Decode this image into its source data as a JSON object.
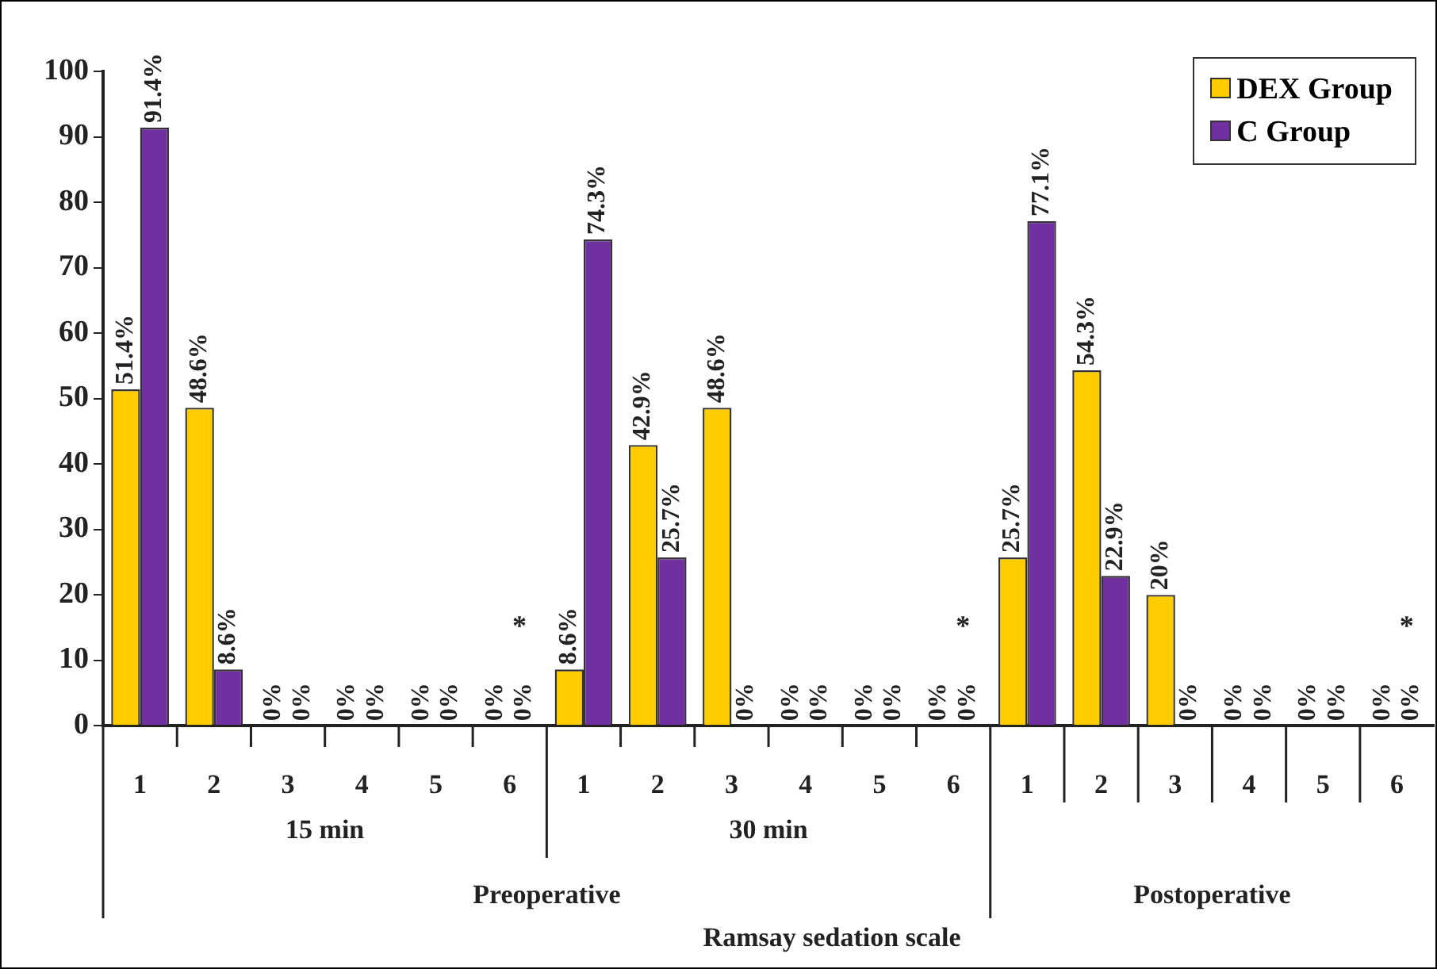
{
  "chart_data": {
    "type": "bar",
    "categories": [
      "1",
      "2",
      "3",
      "4",
      "5",
      "6",
      "1",
      "2",
      "3",
      "4",
      "5",
      "6",
      "1",
      "2",
      "3",
      "4",
      "5",
      "6"
    ],
    "series": [
      {
        "name": "DEX Group",
        "color": "#ffcc00",
        "values": [
          51.4,
          48.6,
          0,
          0,
          0,
          0,
          8.6,
          42.9,
          48.6,
          0,
          0,
          0,
          25.7,
          54.3,
          20,
          0,
          0,
          0
        ],
        "value_labels": [
          "51.4%",
          "48.6%",
          "0%",
          "0%",
          "0%",
          "0%",
          "8.6%",
          "42.9%",
          "48.6%",
          "0%",
          "0%",
          "0%",
          "25.7%",
          "54.3%",
          "20%",
          "0%",
          "0%",
          "0%"
        ]
      },
      {
        "name": "C Group",
        "color": "#7030a0",
        "values": [
          91.4,
          8.6,
          0,
          0,
          0,
          0,
          74.3,
          25.7,
          0,
          0,
          0,
          0,
          77.1,
          22.9,
          0,
          0,
          0,
          0
        ],
        "value_labels": [
          "91.4%",
          "8.6%",
          "0%",
          "0%",
          "0%",
          "0%",
          "74.3%",
          "25.7%",
          "0%",
          "0%",
          "0%",
          "0%",
          "77.1%",
          "22.9%",
          "0%",
          "0%",
          "0%",
          "0%"
        ]
      }
    ],
    "ylim": [
      0,
      100
    ],
    "yticks": [
      0,
      10,
      20,
      30,
      40,
      50,
      60,
      70,
      80,
      90,
      100
    ],
    "grid": false,
    "legend": "top right",
    "annotations": [
      "15 min",
      "30 min",
      "Preoperative",
      "Postoperative",
      "*",
      "*",
      "*",
      "Ramsay sedation scale"
    ]
  }
}
